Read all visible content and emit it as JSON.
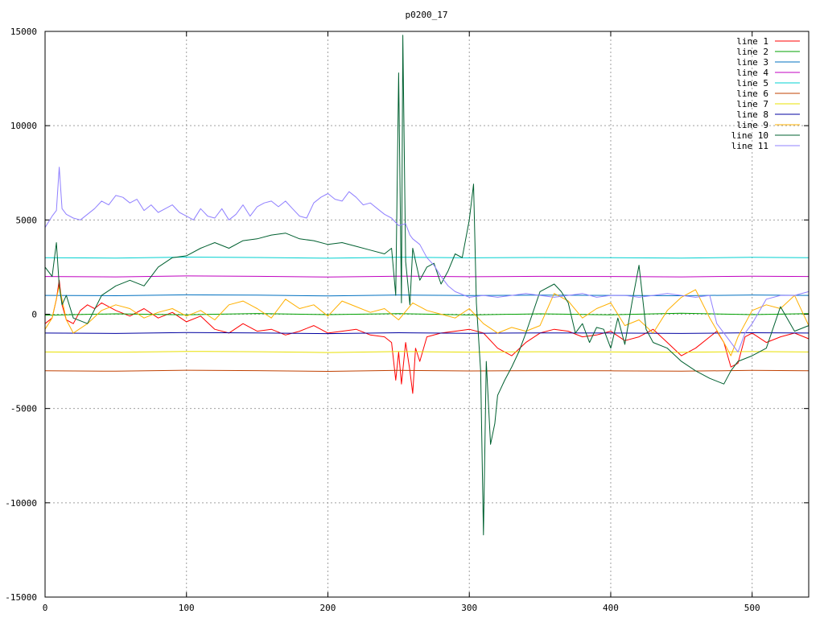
{
  "chart_data": {
    "type": "line",
    "title": "p0200_17",
    "xlabel": "",
    "ylabel": "",
    "xlim": [
      0,
      540
    ],
    "ylim": [
      -15000,
      15000
    ],
    "x_ticks": [
      0,
      100,
      200,
      300,
      400,
      500
    ],
    "y_ticks": [
      -15000,
      -10000,
      -5000,
      0,
      5000,
      10000,
      15000
    ],
    "grid": true,
    "legend_position": "top-right",
    "series": [
      {
        "name": "line 1",
        "color": "#ff0000",
        "x": [
          0,
          5,
          8,
          10,
          12,
          15,
          20,
          25,
          30,
          35,
          40,
          50,
          60,
          70,
          80,
          90,
          100,
          110,
          120,
          130,
          140,
          150,
          160,
          170,
          180,
          190,
          200,
          210,
          220,
          230,
          240,
          245,
          248,
          250,
          252,
          255,
          258,
          260,
          262,
          265,
          270,
          280,
          290,
          300,
          310,
          320,
          330,
          340,
          350,
          360,
          370,
          380,
          390,
          400,
          410,
          420,
          430,
          440,
          450,
          460,
          470,
          475,
          480,
          485,
          490,
          495,
          500,
          510,
          520,
          530,
          540
        ],
        "values": [
          -500,
          -200,
          800,
          1800,
          500,
          -300,
          -500,
          200,
          500,
          300,
          600,
          200,
          -100,
          300,
          -200,
          100,
          -400,
          -100,
          -800,
          -1000,
          -500,
          -900,
          -800,
          -1100,
          -900,
          -600,
          -1000,
          -900,
          -800,
          -1100,
          -1200,
          -1500,
          -3500,
          -2000,
          -3700,
          -1500,
          -3000,
          -4200,
          -1800,
          -2500,
          -1200,
          -1000,
          -900,
          -800,
          -1000,
          -1800,
          -2200,
          -1500,
          -1000,
          -800,
          -900,
          -1200,
          -1100,
          -900,
          -1400,
          -1200,
          -800,
          -1500,
          -2200,
          -1800,
          -1200,
          -900,
          -1500,
          -2800,
          -2600,
          -1200,
          -1000,
          -1500,
          -1200,
          -1000,
          -1300
        ]
      },
      {
        "name": "line 2",
        "color": "#00a000",
        "x": [
          0,
          50,
          100,
          150,
          200,
          250,
          300,
          350,
          400,
          450,
          500,
          540
        ],
        "values": [
          -50,
          20,
          -30,
          40,
          -20,
          30,
          -40,
          20,
          -30,
          50,
          -20,
          30
        ]
      },
      {
        "name": "line 3",
        "color": "#0070c0",
        "x": [
          0,
          50,
          100,
          150,
          200,
          250,
          300,
          350,
          400,
          450,
          500,
          540
        ],
        "values": [
          1000,
          980,
          1030,
          1010,
          970,
          1020,
          990,
          1010,
          1000,
          980,
          1020,
          1000
        ]
      },
      {
        "name": "line 4",
        "color": "#c000c0",
        "x": [
          0,
          50,
          100,
          150,
          200,
          250,
          300,
          350,
          400,
          450,
          500,
          540
        ],
        "values": [
          2000,
          1980,
          2030,
          2010,
          1970,
          2020,
          1990,
          2010,
          2000,
          1980,
          2020,
          2000
        ]
      },
      {
        "name": "line 5",
        "color": "#00d0d0",
        "x": [
          0,
          50,
          100,
          150,
          200,
          250,
          300,
          350,
          400,
          450,
          500,
          540
        ],
        "values": [
          3000,
          2980,
          3030,
          3010,
          2970,
          3020,
          2990,
          3010,
          3000,
          2980,
          3020,
          3000
        ]
      },
      {
        "name": "line 6",
        "color": "#c04000",
        "x": [
          0,
          50,
          100,
          150,
          200,
          250,
          300,
          350,
          400,
          450,
          500,
          540
        ],
        "values": [
          -3000,
          -3020,
          -2970,
          -2990,
          -3030,
          -2980,
          -3010,
          -2990,
          -3000,
          -3020,
          -2980,
          -3000
        ]
      },
      {
        "name": "line 7",
        "color": "#e8e000",
        "x": [
          0,
          50,
          100,
          150,
          200,
          250,
          300,
          350,
          400,
          450,
          500,
          540
        ],
        "values": [
          -2000,
          -2020,
          -1970,
          -1990,
          -2030,
          -1980,
          -2010,
          -1990,
          -2000,
          -2020,
          -1980,
          -2000
        ]
      },
      {
        "name": "line 8",
        "color": "#0000a0",
        "x": [
          0,
          50,
          100,
          150,
          200,
          250,
          300,
          350,
          400,
          450,
          500,
          540
        ],
        "values": [
          -1000,
          -1020,
          -970,
          -990,
          -1030,
          -980,
          -1010,
          -990,
          -1000,
          -1020,
          -980,
          -1000
        ]
      },
      {
        "name": "line 9",
        "color": "#ffb000",
        "x": [
          0,
          5,
          10,
          15,
          20,
          30,
          40,
          50,
          60,
          70,
          80,
          90,
          100,
          110,
          120,
          130,
          140,
          150,
          160,
          170,
          180,
          190,
          200,
          210,
          220,
          230,
          240,
          250,
          260,
          270,
          280,
          290,
          300,
          310,
          320,
          330,
          340,
          350,
          360,
          370,
          380,
          390,
          400,
          410,
          420,
          430,
          440,
          450,
          460,
          470,
          480,
          485,
          490,
          500,
          510,
          520,
          530,
          540
        ],
        "values": [
          -800,
          -200,
          1500,
          -300,
          -1000,
          -500,
          200,
          500,
          300,
          -200,
          100,
          300,
          -100,
          200,
          -300,
          500,
          700,
          300,
          -200,
          800,
          300,
          500,
          -100,
          700,
          400,
          100,
          300,
          -300,
          600,
          200,
          0,
          -200,
          300,
          -500,
          -1000,
          -700,
          -900,
          -600,
          1100,
          700,
          -200,
          300,
          600,
          -600,
          -300,
          -1000,
          200,
          900,
          1300,
          -200,
          -1500,
          -2200,
          -1200,
          200,
          500,
          300,
          1000,
          -600
        ]
      },
      {
        "name": "line 10",
        "color": "#006030",
        "x": [
          0,
          5,
          8,
          10,
          12,
          15,
          20,
          30,
          40,
          50,
          60,
          70,
          80,
          90,
          100,
          110,
          120,
          130,
          140,
          150,
          160,
          170,
          180,
          190,
          200,
          210,
          220,
          230,
          240,
          245,
          248,
          250,
          252,
          253,
          255,
          258,
          260,
          265,
          270,
          275,
          280,
          285,
          290,
          295,
          300,
          303,
          305,
          308,
          310,
          312,
          315,
          318,
          320,
          325,
          330,
          335,
          340,
          350,
          360,
          365,
          370,
          375,
          380,
          385,
          390,
          395,
          400,
          405,
          410,
          415,
          420,
          425,
          430,
          440,
          450,
          460,
          470,
          480,
          485,
          490,
          500,
          510,
          520,
          530,
          540
        ],
        "values": [
          2500,
          2000,
          3800,
          1500,
          500,
          1000,
          -200,
          -500,
          1000,
          1500,
          1800,
          1500,
          2500,
          3000,
          3100,
          3500,
          3800,
          3500,
          3900,
          4000,
          4200,
          4300,
          4000,
          3900,
          3700,
          3800,
          3600,
          3400,
          3200,
          3500,
          1000,
          12800,
          600,
          14800,
          2800,
          500,
          3500,
          1800,
          2500,
          2700,
          1600,
          2300,
          3200,
          3000,
          5000,
          6900,
          600,
          -3000,
          -11700,
          -2500,
          -6900,
          -5800,
          -4300,
          -3500,
          -2800,
          -2000,
          -1000,
          1200,
          1600,
          1200,
          600,
          -1000,
          -500,
          -1500,
          -700,
          -800,
          -1800,
          -200,
          -1600,
          600,
          2600,
          -800,
          -1500,
          -1800,
          -2500,
          -3000,
          -3400,
          -3700,
          -3000,
          -2500,
          -2200,
          -1800,
          400,
          -900,
          -600
        ]
      },
      {
        "name": "line 11",
        "color": "#9080ff",
        "x": [
          0,
          5,
          8,
          10,
          12,
          15,
          20,
          25,
          30,
          35,
          40,
          45,
          50,
          55,
          60,
          65,
          70,
          75,
          80,
          85,
          90,
          95,
          100,
          105,
          110,
          115,
          120,
          125,
          130,
          135,
          140,
          145,
          150,
          155,
          160,
          165,
          170,
          175,
          180,
          185,
          190,
          195,
          200,
          205,
          210,
          215,
          220,
          225,
          230,
          235,
          240,
          245,
          250,
          255,
          258,
          260,
          265,
          270,
          275,
          280,
          285,
          290,
          300,
          310,
          320,
          330,
          340,
          350,
          360,
          370,
          380,
          390,
          400,
          410,
          420,
          430,
          440,
          450,
          460,
          470,
          475,
          480,
          485,
          490,
          495,
          500,
          510,
          520,
          530,
          540
        ],
        "values": [
          4600,
          5200,
          5500,
          7800,
          5600,
          5300,
          5100,
          5000,
          5300,
          5600,
          6000,
          5800,
          6300,
          6200,
          5900,
          6100,
          5500,
          5800,
          5400,
          5600,
          5800,
          5400,
          5200,
          5000,
          5600,
          5200,
          5100,
          5600,
          5000,
          5300,
          5800,
          5200,
          5700,
          5900,
          6000,
          5700,
          6000,
          5600,
          5200,
          5100,
          5900,
          6200,
          6400,
          6100,
          6000,
          6500,
          6200,
          5800,
          5900,
          5600,
          5300,
          5100,
          4700,
          4800,
          4200,
          4000,
          3700,
          3000,
          2600,
          2000,
          1500,
          1200,
          900,
          1000,
          900,
          1000,
          1100,
          1000,
          900,
          1000,
          1100,
          900,
          1000,
          1000,
          900,
          1000,
          1100,
          1000,
          900,
          1000,
          -500,
          -1000,
          -1500,
          -2000,
          -1000,
          -500,
          800,
          1000,
          1000,
          1200
        ]
      }
    ]
  }
}
